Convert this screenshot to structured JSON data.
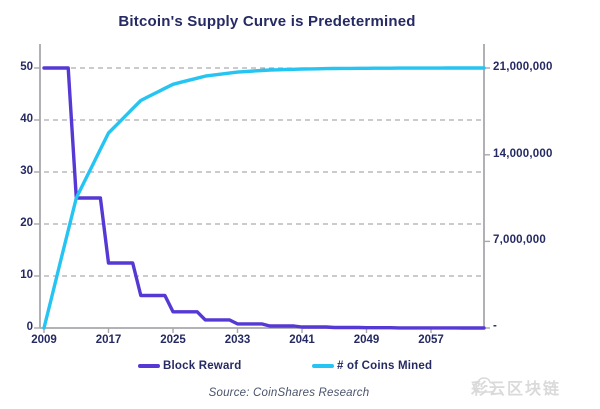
{
  "title": "Bitcoin's Supply Curve is Predetermined",
  "source": "Source: CoinShares Research",
  "watermark": {
    "text": "彩云区块链",
    "icon": "cloud-icon"
  },
  "legend": [
    {
      "label": "Block Reward",
      "color": "#5639d4"
    },
    {
      "label": "# of Coins Mined",
      "color": "#25c4f2"
    }
  ],
  "colors": {
    "block_reward": "#5639d4",
    "coins_mined": "#25c4f2",
    "axis": "#a8a8ad",
    "gridline": "#97979c",
    "text_navy": "#262a63"
  },
  "chart_data": {
    "type": "line",
    "title": "Bitcoin's Supply Curve is Predetermined",
    "xlabel": "",
    "ylabel_left": "Block Reward",
    "ylabel_right": "# of Coins Mined",
    "x_ticks": [
      "2009",
      "2017",
      "2025",
      "2033",
      "2041",
      "2049",
      "2057"
    ],
    "left_axis": {
      "ticks": [
        "0",
        "10",
        "20",
        "30",
        "40",
        "50"
      ],
      "range": [
        0,
        54
      ]
    },
    "right_axis": {
      "ticks": [
        "-",
        "7,000,000",
        "14,000,000",
        "21,000,000"
      ],
      "range": [
        0,
        21000000
      ]
    },
    "grid": "dashed horizontal at left-axis ticks 10-50",
    "legend_position": "bottom",
    "years": [
      2009,
      2010,
      2011,
      2012,
      2013,
      2014,
      2015,
      2016,
      2017,
      2018,
      2019,
      2020,
      2021,
      2022,
      2023,
      2024,
      2025,
      2026,
      2027,
      2028,
      2029,
      2030,
      2031,
      2032,
      2033,
      2034,
      2035,
      2036,
      2037,
      2038,
      2039,
      2040,
      2041,
      2042,
      2043,
      2044,
      2045,
      2046,
      2047,
      2048,
      2049,
      2050,
      2051,
      2052,
      2053,
      2054,
      2055,
      2056,
      2057,
      2058,
      2059,
      2060,
      2061,
      2062,
      2063,
      2064
    ],
    "series": [
      {
        "name": "Block Reward",
        "axis": "left",
        "color": "#5639d4",
        "values": [
          50,
          50,
          50,
          50,
          25,
          25,
          25,
          25,
          12.5,
          12.5,
          12.5,
          12.5,
          6.25,
          6.25,
          6.25,
          6.25,
          3.125,
          3.125,
          3.125,
          3.125,
          1.5625,
          1.5625,
          1.5625,
          1.5625,
          0.78125,
          0.78125,
          0.78125,
          0.78125,
          0.390625,
          0.390625,
          0.390625,
          0.390625,
          0.1953125,
          0.1953125,
          0.1953125,
          0.1953125,
          0.0976563,
          0.0976563,
          0.0976563,
          0.0976563,
          0.0488281,
          0.0488281,
          0.0488281,
          0.0488281,
          0.0244141,
          0.0244141,
          0.0244141,
          0.0244141,
          0.012207,
          0.012207,
          0.012207,
          0.012207,
          0.0061035,
          0.0061035,
          0.0061035,
          0.0061035
        ]
      },
      {
        "name": "# of Coins Mined",
        "axis": "right",
        "color": "#25c4f2",
        "values_millions": [
          0,
          2.625,
          5.25,
          7.875,
          10.5,
          11.8125,
          13.125,
          14.4375,
          15.75,
          16.4063,
          17.0625,
          17.7188,
          18.375,
          18.7031,
          19.0313,
          19.3594,
          19.6875,
          19.8516,
          20.0156,
          20.1797,
          20.3438,
          20.4258,
          20.5078,
          20.5898,
          20.6719,
          20.7129,
          20.7539,
          20.7949,
          20.8359,
          20.8564,
          20.877,
          20.8975,
          20.918,
          20.9282,
          20.9385,
          20.9487,
          20.959,
          20.9641,
          20.9692,
          20.9744,
          20.9795,
          20.982,
          20.9846,
          20.9872,
          20.9897,
          20.991,
          20.9923,
          20.9936,
          20.9949,
          20.9955,
          20.9962,
          20.9968,
          20.9974,
          20.9977,
          20.9981,
          20.9984
        ]
      }
    ]
  }
}
